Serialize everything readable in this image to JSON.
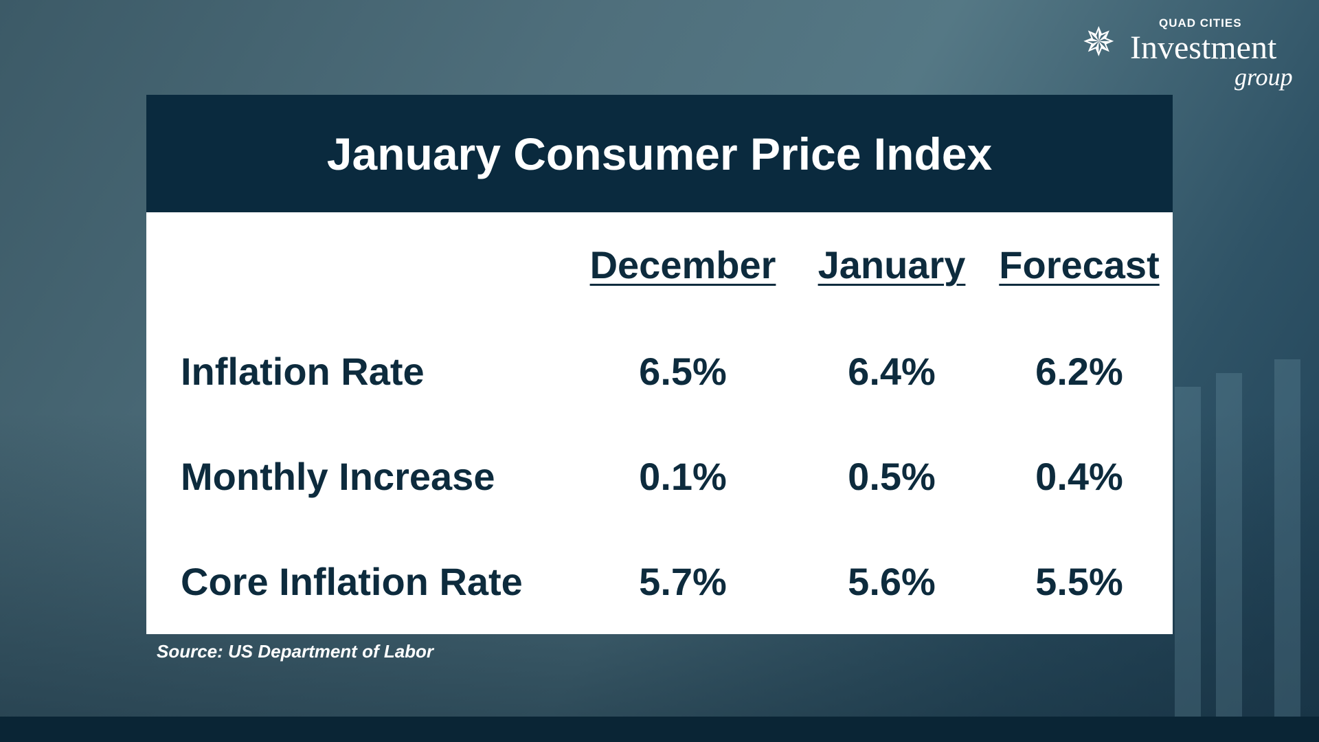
{
  "logo": {
    "top": "QUAD CITIES",
    "main": "Investment",
    "sub": "group"
  },
  "title": "January Consumer Price Index",
  "columns": [
    "December",
    "January",
    "Forecast"
  ],
  "rows": [
    {
      "label": "Inflation Rate",
      "values": [
        "6.5%",
        "6.4%",
        "6.2%"
      ]
    },
    {
      "label": "Monthly Increase",
      "values": [
        "0.1%",
        "0.5%",
        "0.4%"
      ]
    },
    {
      "label": "Core Inflation Rate",
      "values": [
        "5.7%",
        "5.6%",
        "5.5%"
      ]
    }
  ],
  "source": "Source: US Department of Labor",
  "colors": {
    "header": "#0a2a3e",
    "text": "#0d2b3d"
  }
}
